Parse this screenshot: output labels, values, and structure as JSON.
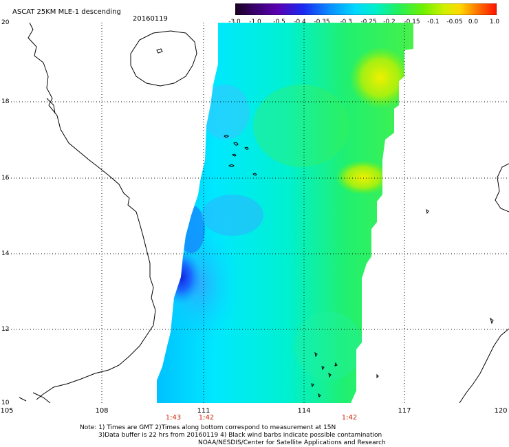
{
  "header": {
    "title": "ASCAT 25KM MLE-1 descending",
    "date": "20160119"
  },
  "colorbar": {
    "labels": [
      "-3.0",
      "-1.0",
      "-0.5",
      "-0.4",
      "-0.35",
      "-0.3",
      "-0.25",
      "-0.2",
      "-0.15",
      "-0.1",
      "-0.05",
      "0.0",
      "1.0"
    ],
    "colors": [
      "#30003a",
      "#5a00a8",
      "#1e2ae8",
      "#0a7aff",
      "#1ab0ff",
      "#00e8f0",
      "#00f0a8",
      "#28f050",
      "#80f000",
      "#d8f000",
      "#ffd800",
      "#ff7a00",
      "#ff1800"
    ]
  },
  "axes": {
    "lon_labels": [
      "105",
      "108",
      "111",
      "114",
      "117",
      "120"
    ],
    "lat_labels": [
      "20",
      "18",
      "16",
      "14",
      "12",
      "10"
    ]
  },
  "times": [
    "1:43",
    "1:42",
    "1:42"
  ],
  "notes": {
    "line1": "Note: 1) Times are GMT 2)Times along bottom correspond to measurement at 15N",
    "line2": "3)Data buffer is 22 hrs from 20160119 4) Black wind barbs indicate possible contamination",
    "line3": "NOAA/NESDIS/Center for Satellite Applications and Research"
  },
  "map_data": {
    "lon_range": [
      105,
      120
    ],
    "lat_range": [
      10,
      20
    ],
    "grid": true,
    "swath_value_range": [
      -0.45,
      -0.05
    ]
  }
}
